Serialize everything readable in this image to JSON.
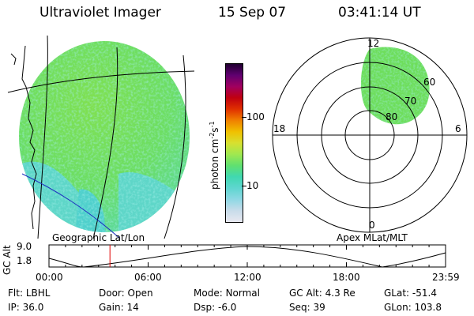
{
  "header": {
    "instrument": "Ultraviolet Imager",
    "date": "15 Sep 07",
    "time": "03:41:14 UT"
  },
  "geo_map": {
    "label": "Geographic Lat/Lon"
  },
  "colorbar": {
    "unit_label": "photon cm",
    "unit_sup1": "-2",
    "unit_mid": "s",
    "unit_sup2": "-1",
    "ticks": [
      {
        "value": 100,
        "label": "100"
      },
      {
        "value": 10,
        "label": "10"
      }
    ],
    "scale": "log",
    "colors": [
      "#e8e8f0",
      "#c8dcea",
      "#8fd8e4",
      "#5fd6d0",
      "#40d8b0",
      "#60e070",
      "#a0e850",
      "#d8e030",
      "#f0c000",
      "#f08000",
      "#e03000",
      "#c00010",
      "#a00060",
      "#600070",
      "#200030"
    ]
  },
  "polar_plot": {
    "label": "Apex MLat/MLT",
    "mlt_labels": [
      {
        "label": "12",
        "pos": "top"
      },
      {
        "label": "18",
        "pos": "left"
      },
      {
        "label": "6",
        "pos": "right"
      },
      {
        "label": "0",
        "pos": "bottom"
      }
    ],
    "mlat_labels": [
      "60",
      "70",
      "80"
    ]
  },
  "timeline": {
    "y_axis_label": "GC Alt",
    "y_ticks": [
      "9.0",
      "1.8"
    ],
    "x_ticks": [
      "00:00",
      "06:00",
      "12:00",
      "18:00",
      "23:59"
    ],
    "current_time_hours": 3.69,
    "marker_color": "#e00000"
  },
  "info": {
    "row1": [
      {
        "label": "Flt:",
        "value": "LBHL"
      },
      {
        "label": "Door:",
        "value": "Open"
      },
      {
        "label": "Mode:",
        "value": "Normal"
      },
      {
        "label": "GC Alt:",
        "value": "4.3 Re"
      },
      {
        "label": "GLat:",
        "value": "-51.4"
      }
    ],
    "row2": [
      {
        "label": "IP:",
        "value": "36.0"
      },
      {
        "label": "Gain:",
        "value": "14"
      },
      {
        "label": "Dsp:",
        "value": "-6.0"
      },
      {
        "label": "Seq:",
        "value": "39"
      },
      {
        "label": "GLon:",
        "value": "103.8"
      }
    ]
  }
}
